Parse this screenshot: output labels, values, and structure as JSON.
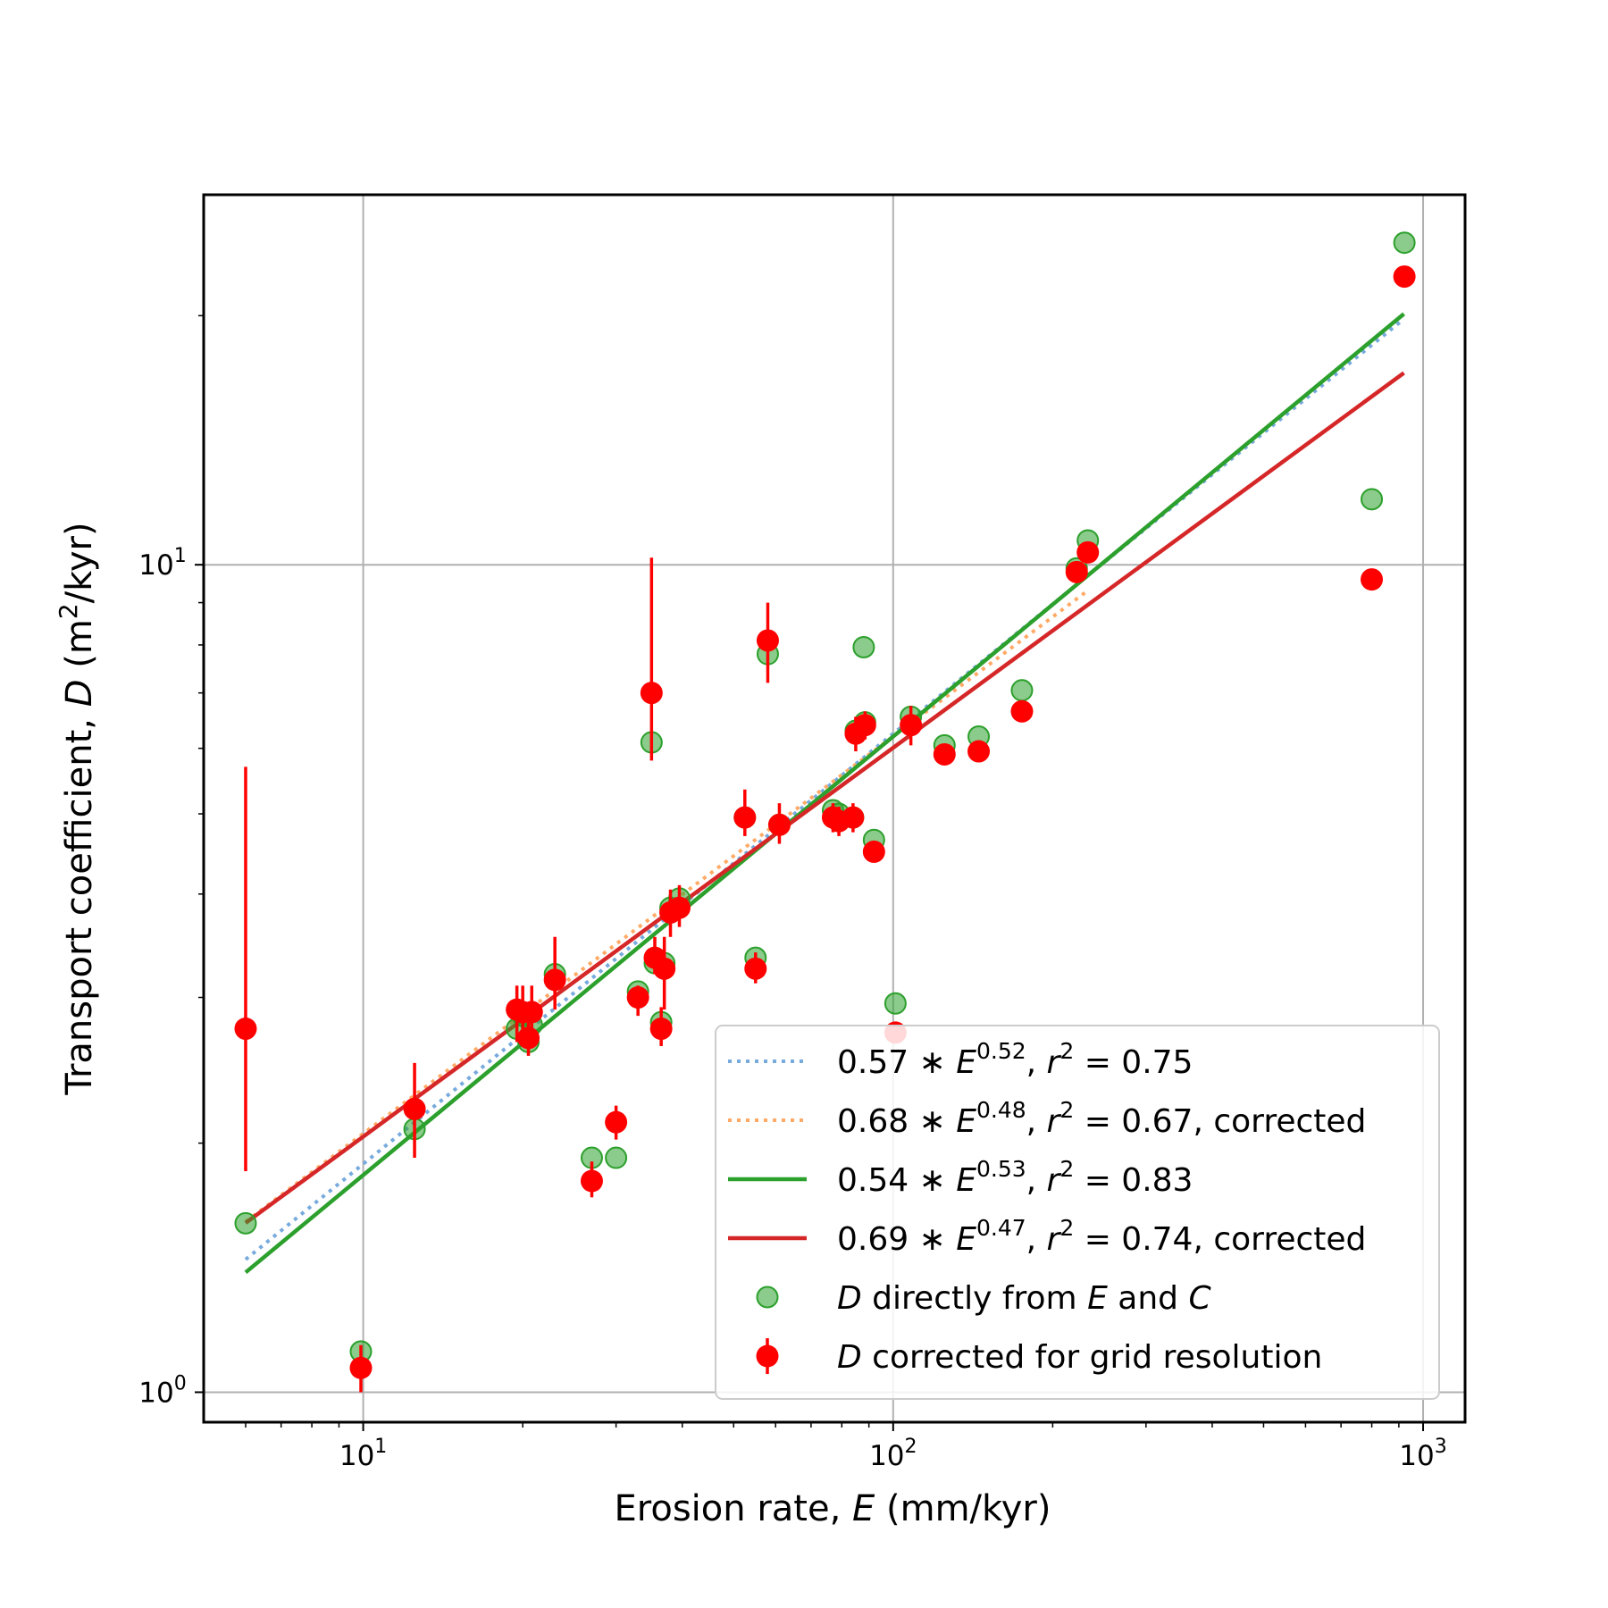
{
  "chart_data": {
    "type": "scatter",
    "xscale": "log",
    "yscale": "log",
    "xlim": [
      5.0,
      1200
    ],
    "ylim": [
      0.92,
      28.0
    ],
    "grid": true,
    "legend_position": "lower-right",
    "xlabel": {
      "text": "Erosion rate, ",
      "var": "E",
      "unit": " (mm/kyr)"
    },
    "ylabel": {
      "text": "Transport coefficient, ",
      "var": "D",
      "unit_pre": " (m",
      "unit_sup": "2",
      "unit_post": "/kyr)"
    },
    "x_ticks": [
      {
        "value": 10,
        "base": "10",
        "exp": "1"
      },
      {
        "value": 100,
        "base": "10",
        "exp": "2"
      },
      {
        "value": 1000,
        "base": "10",
        "exp": "3"
      }
    ],
    "y_ticks": [
      {
        "value": 1,
        "base": "10",
        "exp": "0"
      },
      {
        "value": 10,
        "base": "10",
        "exp": "1"
      }
    ],
    "fits": [
      {
        "coef": 0.57,
        "exp": 0.52,
        "x_range": [
          6,
          920
        ],
        "style": "dotted",
        "color": "#77aadd",
        "label": {
          "coef": "0.57",
          "power": "0.52",
          "r2": "0.75",
          "suffix": ""
        }
      },
      {
        "coef": 0.68,
        "exp": 0.48,
        "x_range": [
          6,
          230
        ],
        "style": "dotted",
        "color": "#ffaa66",
        "label": {
          "coef": "0.68",
          "power": "0.48",
          "r2": "0.67",
          "suffix": ", corrected"
        }
      },
      {
        "coef": 0.54,
        "exp": 0.53,
        "x_range": [
          6,
          920
        ],
        "style": "solid",
        "color": "#2ca02c",
        "label": {
          "coef": "0.54",
          "power": "0.53",
          "r2": "0.83",
          "suffix": ""
        }
      },
      {
        "coef": 0.69,
        "exp": 0.47,
        "x_range": [
          6,
          920
        ],
        "style": "solid",
        "color": "#d62728",
        "label": {
          "coef": "0.69",
          "power": "0.47",
          "r2": "0.74",
          "suffix": ", corrected"
        }
      }
    ],
    "series": [
      {
        "name": {
          "var": "D",
          "text": " directly from ",
          "var2": "E",
          "and": " and ",
          "var3": "C"
        },
        "color": "#2ca02c",
        "points": [
          [
            6,
            1.6
          ],
          [
            9.9,
            1.12
          ],
          [
            12.5,
            2.08
          ],
          [
            19.5,
            2.75
          ],
          [
            20,
            2.85
          ],
          [
            20.8,
            2.78
          ],
          [
            20.5,
            2.65
          ],
          [
            23,
            3.2
          ],
          [
            27,
            1.92
          ],
          [
            30,
            1.92
          ],
          [
            33,
            3.05
          ],
          [
            35,
            6.1
          ],
          [
            35.5,
            3.3
          ],
          [
            37,
            3.3
          ],
          [
            36.5,
            2.8
          ],
          [
            38,
            3.85
          ],
          [
            39.5,
            3.95
          ],
          [
            52.5,
            4.95
          ],
          [
            55,
            3.35
          ],
          [
            58,
            7.8
          ],
          [
            61,
            4.85
          ],
          [
            77,
            5.05
          ],
          [
            79,
            5.0
          ],
          [
            84,
            4.95
          ],
          [
            85,
            6.3
          ],
          [
            88,
            7.95
          ],
          [
            88.5,
            6.45
          ],
          [
            92,
            4.65
          ],
          [
            101,
            2.95
          ],
          [
            108,
            6.55
          ],
          [
            125,
            6.05
          ],
          [
            145,
            6.2
          ],
          [
            175,
            7.05
          ],
          [
            222,
            9.9
          ],
          [
            233,
            10.7
          ],
          [
            800,
            12.0
          ],
          [
            922,
            24.5
          ]
        ]
      },
      {
        "name": {
          "var": "D",
          "text": " corrected for grid resolution"
        },
        "color": "#ff0000",
        "points": [
          {
            "x": 6,
            "y": 2.75,
            "lo": 1.85,
            "hi": 5.7
          },
          {
            "x": 9.9,
            "y": 1.07,
            "lo": 1.0,
            "hi": 1.14
          },
          {
            "x": 12.5,
            "y": 2.2,
            "lo": 1.92,
            "hi": 2.5
          },
          {
            "x": 19.5,
            "y": 2.9,
            "lo": 2.65,
            "hi": 3.1
          },
          {
            "x": 20,
            "y": 2.88,
            "lo": 2.65,
            "hi": 3.1
          },
          {
            "x": 20.8,
            "y": 2.88,
            "lo": 2.7,
            "hi": 3.1
          },
          {
            "x": 20.5,
            "y": 2.68,
            "lo": 2.55,
            "hi": 2.8
          },
          {
            "x": 23,
            "y": 3.15,
            "lo": 2.9,
            "hi": 3.55
          },
          {
            "x": 27,
            "y": 1.8,
            "lo": 1.72,
            "hi": 1.9
          },
          {
            "x": 30,
            "y": 2.12,
            "lo": 2.02,
            "hi": 2.22
          },
          {
            "x": 33,
            "y": 3.0,
            "lo": 2.85,
            "hi": 3.1
          },
          {
            "x": 35,
            "y": 7.0,
            "lo": 5.8,
            "hi": 10.2
          },
          {
            "x": 35.5,
            "y": 3.35,
            "lo": 3.2,
            "hi": 3.55
          },
          {
            "x": 37,
            "y": 3.25,
            "lo": 2.9,
            "hi": 3.55
          },
          {
            "x": 36.5,
            "y": 2.75,
            "lo": 2.62,
            "hi": 2.92
          },
          {
            "x": 38,
            "y": 3.8,
            "lo": 3.55,
            "hi": 4.05
          },
          {
            "x": 39.5,
            "y": 3.85,
            "lo": 3.65,
            "hi": 4.1
          },
          {
            "x": 52.5,
            "y": 4.95,
            "lo": 4.7,
            "hi": 5.35
          },
          {
            "x": 55,
            "y": 3.25,
            "lo": 3.12,
            "hi": 3.4
          },
          {
            "x": 58,
            "y": 8.1,
            "lo": 7.2,
            "hi": 9.0
          },
          {
            "x": 61,
            "y": 4.85,
            "lo": 4.6,
            "hi": 5.15
          },
          {
            "x": 77,
            "y": 4.95,
            "lo": 4.75,
            "hi": 5.15
          },
          {
            "x": 79,
            "y": 4.9,
            "lo": 4.7,
            "hi": 5.1
          },
          {
            "x": 84,
            "y": 4.95,
            "lo": 4.75,
            "hi": 5.15
          },
          {
            "x": 85,
            "y": 6.25,
            "lo": 5.95,
            "hi": 6.55
          },
          {
            "x": 88.5,
            "y": 6.4,
            "lo": 6.15,
            "hi": 6.65
          },
          {
            "x": 92,
            "y": 4.5,
            "lo": 4.4,
            "hi": 4.6
          },
          {
            "x": 101,
            "y": 2.72,
            "lo": 2.65,
            "hi": 2.8
          },
          {
            "x": 108,
            "y": 6.4,
            "lo": 6.05,
            "hi": 6.75
          },
          {
            "x": 125,
            "y": 5.9,
            "lo": 5.75,
            "hi": 6.05
          },
          {
            "x": 145,
            "y": 5.95,
            "lo": 5.8,
            "hi": 6.1
          },
          {
            "x": 175,
            "y": 6.65,
            "lo": 6.5,
            "hi": 6.8
          },
          {
            "x": 222,
            "y": 9.8,
            "lo": 9.6,
            "hi": 10.0
          },
          {
            "x": 233,
            "y": 10.35,
            "lo": 10.1,
            "hi": 10.6
          },
          {
            "x": 800,
            "y": 9.6,
            "lo": 9.5,
            "hi": 9.7
          },
          {
            "x": 922,
            "y": 22.3,
            "lo": 22.0,
            "hi": 22.6
          }
        ]
      }
    ]
  }
}
